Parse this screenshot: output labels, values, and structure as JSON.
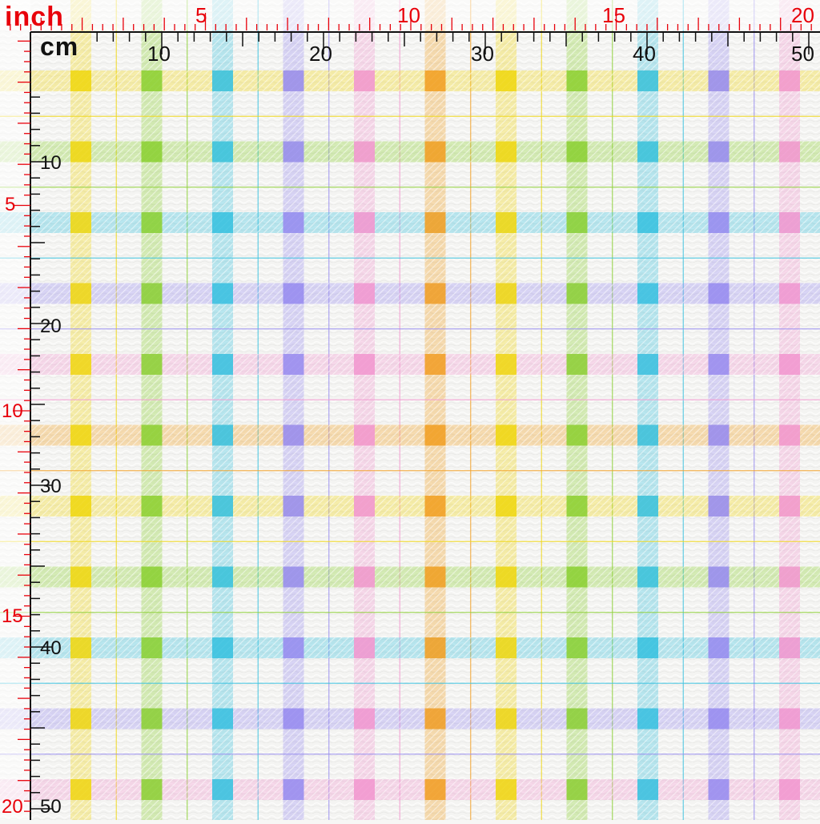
{
  "labels": {
    "inch": "inch",
    "cm": "cm"
  },
  "inch_ticks": [
    "5",
    "10",
    "15",
    "20"
  ],
  "cm_ticks": [
    "10",
    "20",
    "30",
    "40",
    "50"
  ],
  "fabric": {
    "background": "#f4f4f2",
    "stripe_colors": [
      "#f0d81a",
      "#8fd13a",
      "#3ec3e0",
      "#9a8ff0",
      "#f29ad0",
      "#f2a22a"
    ],
    "check_sequence": [
      0,
      1,
      2,
      3,
      4,
      5,
      0,
      1,
      2,
      3,
      4
    ]
  },
  "ruler": {
    "inch_color": "#e8000a",
    "cm_color": "#111111"
  }
}
